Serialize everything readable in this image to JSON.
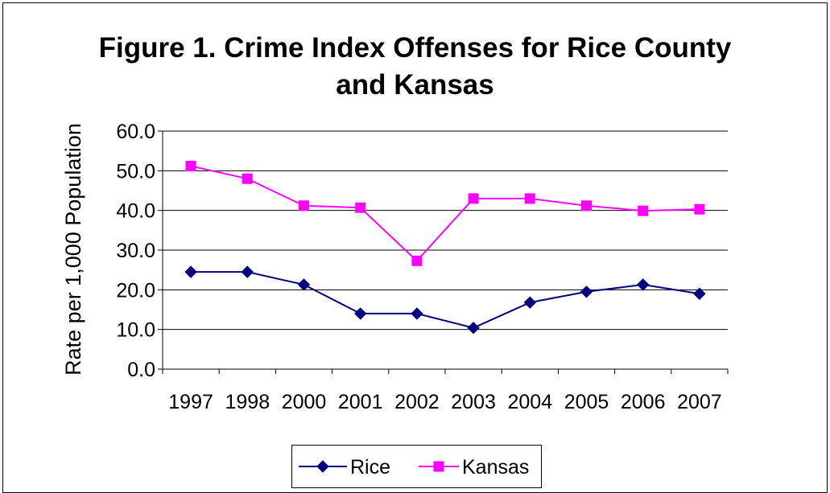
{
  "chart_data": {
    "type": "line",
    "title_line1": "Figure 1. Crime Index Offenses for Rice County",
    "title_line2": "and Kansas",
    "ylabel": "Rate per 1,000 Population",
    "xlabel": "",
    "categories": [
      "1997",
      "1998",
      "2000",
      "2001",
      "2002",
      "2003",
      "2004",
      "2005",
      "2006",
      "2007"
    ],
    "ylim": [
      0,
      60
    ],
    "yticks": [
      "0.0",
      "10.0",
      "20.0",
      "30.0",
      "40.0",
      "50.0",
      "60.0"
    ],
    "grid": true,
    "legend_position": "bottom",
    "series": [
      {
        "name": "Rice",
        "color": "#000080",
        "marker": "diamond",
        "values": [
          24.5,
          24.5,
          21.3,
          14.0,
          14.0,
          10.4,
          16.8,
          19.5,
          21.3,
          19.0
        ]
      },
      {
        "name": "Kansas",
        "color": "#ff00ff",
        "marker": "square",
        "values": [
          51.2,
          48.0,
          41.2,
          40.7,
          27.3,
          43.0,
          43.0,
          41.2,
          39.9,
          40.3
        ]
      }
    ]
  }
}
